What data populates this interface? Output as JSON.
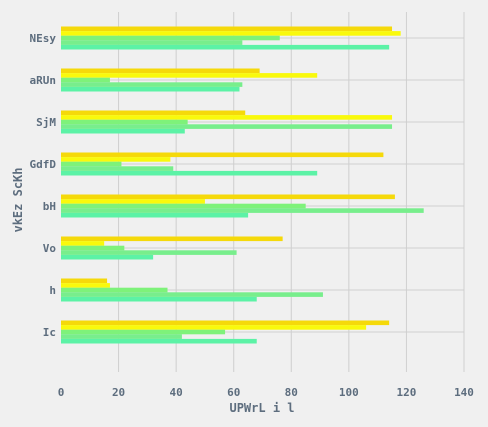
{
  "chart_data": {
    "type": "bar",
    "orientation": "horizontal",
    "title": "",
    "xlabel": "UPWrL i  l",
    "ylabel": "vkEz ScKh",
    "xlim": [
      0,
      140
    ],
    "xticks": [
      0,
      20,
      40,
      60,
      80,
      100,
      120,
      140
    ],
    "grid": true,
    "legend": "none",
    "categories": [
      "NEsy",
      "aRUn",
      "SjM",
      "GdfD",
      "bH",
      "Vo",
      "h",
      "Ic"
    ],
    "series": [
      {
        "color": "#f5d90a",
        "values": [
          115,
          69,
          64,
          112,
          116,
          77,
          16,
          114
        ]
      },
      {
        "color": "#f9f90c",
        "values": [
          118,
          89,
          115,
          38,
          50,
          15,
          17,
          106
        ]
      },
      {
        "color": "#7ef27a",
        "values": [
          76,
          17,
          44,
          21,
          85,
          22,
          37,
          57
        ]
      },
      {
        "color": "#78ee8c",
        "values": [
          63,
          63,
          115,
          39,
          126,
          61,
          91,
          42
        ]
      },
      {
        "color": "#5cf2a6",
        "values": [
          114,
          62,
          43,
          89,
          65,
          32,
          68,
          68
        ]
      }
    ]
  }
}
